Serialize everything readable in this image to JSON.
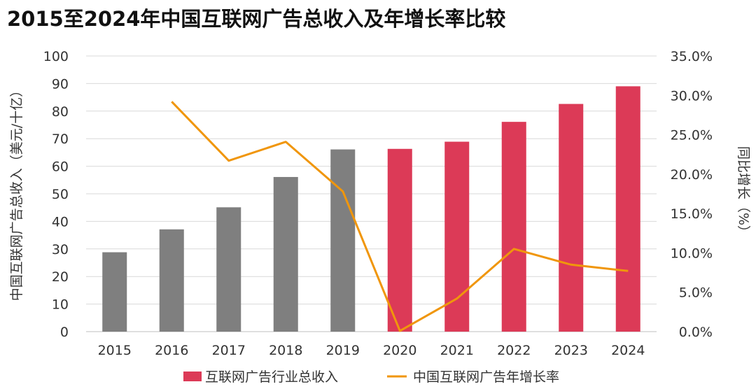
{
  "chart_data": {
    "type": "bar",
    "title": "2015至2024年中国互联网广告总收入及年增长率比较",
    "categories": [
      "2015",
      "2016",
      "2017",
      "2018",
      "2019",
      "2020",
      "2021",
      "2022",
      "2023",
      "2024"
    ],
    "series": [
      {
        "name": "互联网广告行业总收入",
        "type": "bar",
        "axis": "left",
        "values": [
          28.8,
          37.1,
          45.1,
          56.1,
          66.1,
          66.3,
          68.9,
          76.1,
          82.6,
          89.0
        ]
      },
      {
        "name": "中国互联网广告年增长率",
        "type": "line",
        "axis": "right",
        "values": [
          null,
          29.2,
          21.7,
          24.1,
          17.8,
          0.1,
          4.2,
          10.5,
          8.5,
          7.7
        ]
      }
    ],
    "bar_colors": [
      "#7f7f7f",
      "#7f7f7f",
      "#7f7f7f",
      "#7f7f7f",
      "#7f7f7f",
      "#dc3a57",
      "#dc3a57",
      "#dc3a57",
      "#dc3a57",
      "#dc3a57"
    ],
    "legend_bar_color": "#dc3a57",
    "line_color": "#f0960c",
    "grid_color": "#d9d9d9",
    "ylabel": "中国互联网广告总收入（美元/十亿）",
    "y2label": "同比增长（%）",
    "ylim": [
      0,
      100
    ],
    "yticks": [
      "0",
      "10",
      "20",
      "30",
      "40",
      "50",
      "60",
      "70",
      "80",
      "90",
      "100"
    ],
    "y2lim": [
      0,
      35
    ],
    "y2ticks": [
      "0.0%",
      "5.0%",
      "10.0%",
      "15.0%",
      "20.0%",
      "25.0%",
      "30.0%",
      "35.0%"
    ],
    "grid": true,
    "legend_position": "bottom"
  }
}
